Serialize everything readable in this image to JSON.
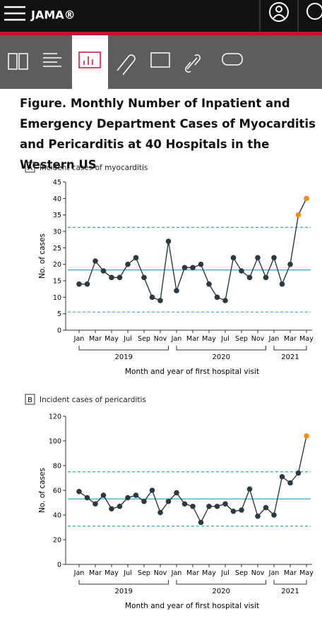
{
  "header": {
    "logo": "JAMA®"
  },
  "figure_title": "Figure.  Monthly Number of Inpatient and Emergency Department Cases of Myocarditis and Pericarditis at 40 Hospitals in the Western US",
  "chart_data": [
    {
      "type": "line",
      "panel": "A",
      "title": "Incident cases of myocarditis",
      "y_label": "No. of cases",
      "x_label": "Month and year of first hospital visit",
      "categories": [
        "Jan",
        null,
        "Mar",
        null,
        "May",
        null,
        "Jul",
        null,
        "Sep",
        null,
        "Nov",
        null,
        "Jan",
        null,
        "Mar",
        null,
        "May",
        null,
        "Jul",
        null,
        "Sep",
        null,
        "Nov",
        null,
        "Jan",
        null,
        "Mar",
        null,
        "May"
      ],
      "year_groups": [
        "2019",
        "2020",
        "2021"
      ],
      "series": [
        {
          "color": "#1f2d33",
          "values": [
            14,
            14,
            21,
            18,
            16,
            16,
            20,
            22,
            16,
            10,
            9,
            27,
            12,
            19,
            19,
            20,
            14,
            10,
            9,
            22,
            18,
            16,
            22,
            16,
            22,
            14,
            20,
            35,
            40
          ],
          "point_colors": [
            "#2b3a40",
            "#2b3a40",
            "#2b3a40",
            "#2b3a40",
            "#2b3a40",
            "#2b3a40",
            "#2b3a40",
            "#2b3a40",
            "#2b3a40",
            "#2b3a40",
            "#2b3a40",
            "#2b3a40",
            "#2b3a40",
            "#2b3a40",
            "#2b3a40",
            "#2b3a40",
            "#2b3a40",
            "#2b3a40",
            "#2b3a40",
            "#2b3a40",
            "#2b3a40",
            "#2b3a40",
            "#2b3a40",
            "#2b3a40",
            "#2b3a40",
            "#2b3a40",
            "#2b3a40",
            "#f28c1c",
            "#f28c1c"
          ]
        }
      ],
      "reference_lines": [
        {
          "value": 31.2,
          "style": "dashed",
          "color": "#3aa6c4"
        },
        {
          "value": 18.3,
          "style": "solid",
          "color": "#3aa6c4"
        },
        {
          "value": 5.5,
          "style": "dashed",
          "color": "#3aa6c4"
        }
      ],
      "ylim": [
        0,
        45
      ],
      "yticks": [
        0,
        5,
        10,
        15,
        20,
        25,
        30,
        35,
        40,
        45
      ]
    },
    {
      "type": "line",
      "panel": "B",
      "title": "Incident cases of pericarditis",
      "y_label": "No. of cases",
      "x_label": "Month and year of first hospital visit",
      "categories": [
        "Jan",
        null,
        "Mar",
        null,
        "May",
        null,
        "Jul",
        null,
        "Sep",
        null,
        "Nov",
        null,
        "Jan",
        null,
        "Mar",
        null,
        "May",
        null,
        "Jul",
        null,
        "Sep",
        null,
        "Nov",
        null,
        "Jan",
        null,
        "Mar",
        null,
        "May"
      ],
      "year_groups": [
        "2019",
        "2020",
        "2021"
      ],
      "series": [
        {
          "color": "#1f2d33",
          "values": [
            59,
            54,
            49,
            56,
            45,
            47,
            54,
            56,
            51,
            60,
            42,
            51,
            58,
            49,
            47,
            34,
            47,
            47,
            49,
            43,
            44,
            61,
            39,
            46,
            40,
            71,
            66,
            74,
            104
          ],
          "point_colors": [
            "#2b3a40",
            "#2b3a40",
            "#2b3a40",
            "#2b3a40",
            "#2b3a40",
            "#2b3a40",
            "#2b3a40",
            "#2b3a40",
            "#2b3a40",
            "#2b3a40",
            "#2b3a40",
            "#2b3a40",
            "#2b3a40",
            "#2b3a40",
            "#2b3a40",
            "#2b3a40",
            "#2b3a40",
            "#2b3a40",
            "#2b3a40",
            "#2b3a40",
            "#2b3a40",
            "#2b3a40",
            "#2b3a40",
            "#2b3a40",
            "#2b3a40",
            "#2b3a40",
            "#2b3a40",
            "#2b3a40",
            "#f28c1c"
          ]
        }
      ],
      "reference_lines": [
        {
          "value": 75,
          "style": "dashed",
          "color": "#3aa6c4"
        },
        {
          "value": 53,
          "style": "solid",
          "color": "#3aa6c4"
        },
        {
          "value": 31,
          "style": "dashed",
          "color": "#3aa6c4"
        }
      ],
      "ylim": [
        0,
        120
      ],
      "yticks": [
        0,
        20,
        40,
        60,
        80,
        100,
        120
      ]
    }
  ]
}
